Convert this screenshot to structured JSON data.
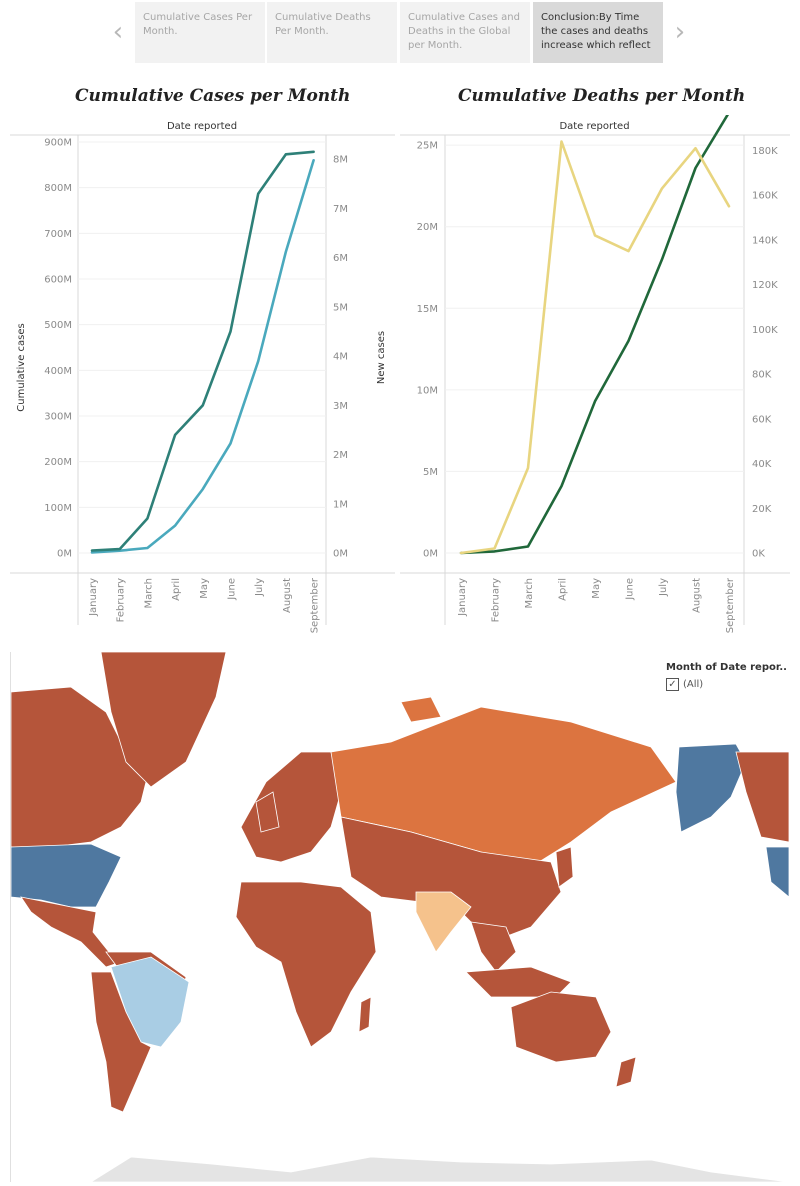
{
  "story": {
    "points": [
      {
        "label": "Cumulative Cases Per Month.",
        "active": false
      },
      {
        "label": "Cumulative Deaths Per Month.",
        "active": false
      },
      {
        "label": "Cumulative Cases and Deaths in the Global per Month.",
        "active": false
      },
      {
        "label": "Conclusion:By Time the cases and deaths increase which reflect",
        "active": true
      }
    ],
    "prev_icon": "chevron-left-icon",
    "next_icon": "chevron-right-icon"
  },
  "chart_data": [
    {
      "type": "line",
      "title": "Cumulative Cases per Month",
      "xlabel": "Date reported",
      "ylabel_left": "Cumulative cases",
      "ylabel_right": "New cases",
      "x": [
        "January",
        "February",
        "March",
        "April",
        "May",
        "June",
        "July",
        "August",
        "September"
      ],
      "yticks_left": [
        "0M",
        "100M",
        "200M",
        "300M",
        "400M",
        "500M",
        "600M",
        "700M",
        "800M",
        "900M"
      ],
      "ylim_left": [
        0,
        900
      ],
      "yticks_right": [
        "0M",
        "1M",
        "2M",
        "3M",
        "4M",
        "5M",
        "6M",
        "7M",
        "8M"
      ],
      "ylim_right": [
        0,
        8.35
      ],
      "series": [
        {
          "axis": "left",
          "color": "#4aa9bd",
          "values": [
            1,
            5,
            11,
            60,
            140,
            240,
            420,
            660,
            860
          ]
        },
        {
          "axis": "right",
          "color": "#2e8078",
          "values": [
            0.05,
            0.08,
            0.7,
            2.4,
            3.0,
            4.5,
            7.3,
            8.1,
            8.15
          ]
        }
      ],
      "grid": true
    },
    {
      "type": "line",
      "title": "Cumulative Deaths per Month",
      "xlabel": "Date reported",
      "ylabel_left": "",
      "ylabel_right": "",
      "x": [
        "January",
        "February",
        "March",
        "April",
        "May",
        "June",
        "July",
        "August",
        "September"
      ],
      "yticks_left": [
        "0M",
        "5M",
        "10M",
        "15M",
        "20M",
        "25M"
      ],
      "ylim_left": [
        0,
        25.5
      ],
      "yticks_right": [
        "0K",
        "20K",
        "40K",
        "60K",
        "80K",
        "100K",
        "120K",
        "140K",
        "160K",
        "180K"
      ],
      "ylim_right": [
        0,
        186
      ],
      "series": [
        {
          "axis": "left",
          "color": "#20683a",
          "values": [
            0,
            0.1,
            0.4,
            4.1,
            9.3,
            13.0,
            18.0,
            23.6,
            27.0
          ]
        },
        {
          "axis": "right",
          "color": "#e8d580",
          "values": [
            0,
            2,
            38,
            184,
            142,
            135,
            163,
            181,
            155
          ]
        }
      ],
      "grid": true
    }
  ],
  "map": {
    "legend_title": "Month of Date repor...",
    "legend_option": "(All)",
    "colors": {
      "dark_orange": "#b5553a",
      "orange": "#dc7440",
      "peach": "#f5c28c",
      "blue": "#4f78a0",
      "light_blue": "#a9cde4",
      "no_data": "#e4e4e4"
    }
  }
}
